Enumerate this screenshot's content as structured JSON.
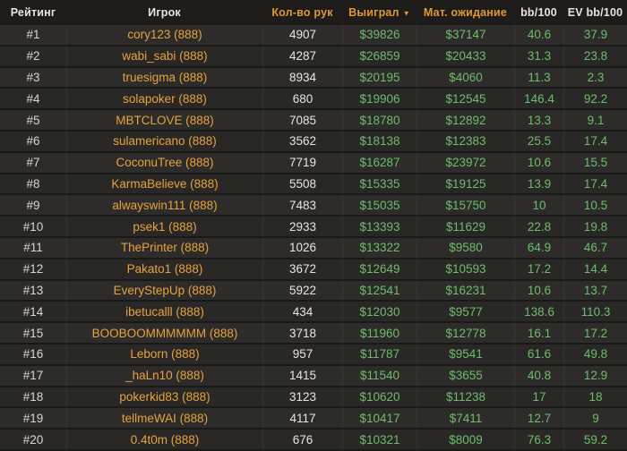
{
  "header": {
    "columns": [
      {
        "label": "Рейтинг",
        "accent": false
      },
      {
        "label": "Игрок",
        "accent": false
      },
      {
        "label": "Кол-во рук",
        "accent": true
      },
      {
        "label": "Выиграл",
        "accent": true,
        "sorted": "desc"
      },
      {
        "label": "Мат. ожидание",
        "accent": true
      },
      {
        "label": "bb/100",
        "accent": false
      },
      {
        "label": "EV bb/100",
        "accent": false
      }
    ],
    "sort_icon": "▼"
  },
  "rows": [
    {
      "rank": "#1",
      "player": "cory123 (888)",
      "hands": "4907",
      "won": "$39826",
      "expectation": "$37147",
      "bb100": "40.6",
      "ev_bb100": "37.9"
    },
    {
      "rank": "#2",
      "player": "wabi_sabi (888)",
      "hands": "4287",
      "won": "$26859",
      "expectation": "$20433",
      "bb100": "31.3",
      "ev_bb100": "23.8"
    },
    {
      "rank": "#3",
      "player": "truesigma (888)",
      "hands": "8934",
      "won": "$20195",
      "expectation": "$4060",
      "bb100": "11.3",
      "ev_bb100": "2.3"
    },
    {
      "rank": "#4",
      "player": "solapoker (888)",
      "hands": "680",
      "won": "$19906",
      "expectation": "$12545",
      "bb100": "146.4",
      "ev_bb100": "92.2"
    },
    {
      "rank": "#5",
      "player": "MBTCLOVE (888)",
      "hands": "7085",
      "won": "$18780",
      "expectation": "$12892",
      "bb100": "13.3",
      "ev_bb100": "9.1"
    },
    {
      "rank": "#6",
      "player": "sulamericano (888)",
      "hands": "3562",
      "won": "$18138",
      "expectation": "$12383",
      "bb100": "25.5",
      "ev_bb100": "17.4"
    },
    {
      "rank": "#7",
      "player": "CoconuTree (888)",
      "hands": "7719",
      "won": "$16287",
      "expectation": "$23972",
      "bb100": "10.6",
      "ev_bb100": "15.5"
    },
    {
      "rank": "#8",
      "player": "KarmaBelieve (888)",
      "hands": "5508",
      "won": "$15335",
      "expectation": "$19125",
      "bb100": "13.9",
      "ev_bb100": "17.4"
    },
    {
      "rank": "#9",
      "player": "alwayswin111 (888)",
      "hands": "7483",
      "won": "$15035",
      "expectation": "$15750",
      "bb100": "10",
      "ev_bb100": "10.5"
    },
    {
      "rank": "#10",
      "player": "psek1 (888)",
      "hands": "2933",
      "won": "$13393",
      "expectation": "$11629",
      "bb100": "22.8",
      "ev_bb100": "19.8"
    },
    {
      "rank": "#11",
      "player": "ThePrinter (888)",
      "hands": "1026",
      "won": "$13322",
      "expectation": "$9580",
      "bb100": "64.9",
      "ev_bb100": "46.7"
    },
    {
      "rank": "#12",
      "player": "Pakato1 (888)",
      "hands": "3672",
      "won": "$12649",
      "expectation": "$10593",
      "bb100": "17.2",
      "ev_bb100": "14.4"
    },
    {
      "rank": "#13",
      "player": "EveryStepUp (888)",
      "hands": "5922",
      "won": "$12541",
      "expectation": "$16231",
      "bb100": "10.6",
      "ev_bb100": "13.7"
    },
    {
      "rank": "#14",
      "player": "ibetucalll (888)",
      "hands": "434",
      "won": "$12030",
      "expectation": "$9577",
      "bb100": "138.6",
      "ev_bb100": "110.3"
    },
    {
      "rank": "#15",
      "player": "BOOBOOMMMMMM (888)",
      "hands": "3718",
      "won": "$11960",
      "expectation": "$12778",
      "bb100": "16.1",
      "ev_bb100": "17.2"
    },
    {
      "rank": "#16",
      "player": "Leborn (888)",
      "hands": "957",
      "won": "$11787",
      "expectation": "$9541",
      "bb100": "61.6",
      "ev_bb100": "49.8"
    },
    {
      "rank": "#17",
      "player": "_haLn10 (888)",
      "hands": "1415",
      "won": "$11540",
      "expectation": "$3655",
      "bb100": "40.8",
      "ev_bb100": "12.9"
    },
    {
      "rank": "#18",
      "player": "pokerkid83 (888)",
      "hands": "3123",
      "won": "$10620",
      "expectation": "$11238",
      "bb100": "17",
      "ev_bb100": "18"
    },
    {
      "rank": "#19",
      "player": "tellmeWAI (888)",
      "hands": "4117",
      "won": "$10417",
      "expectation": "$7411",
      "bb100": "12.7",
      "ev_bb100": "9"
    },
    {
      "rank": "#20",
      "player": "0.4t0m (888)",
      "hands": "676",
      "won": "$10321",
      "expectation": "$8009",
      "bb100": "76.3",
      "ev_bb100": "59.2"
    }
  ],
  "colors": {
    "accent_orange": "#df9838",
    "player_orange": "#e7a23d",
    "value_green": "#6cbd6c",
    "text_white": "#e8e5e1",
    "row_odd": "#2e2c2a",
    "row_even": "#2a2826",
    "bg": "#1d1c1a"
  }
}
